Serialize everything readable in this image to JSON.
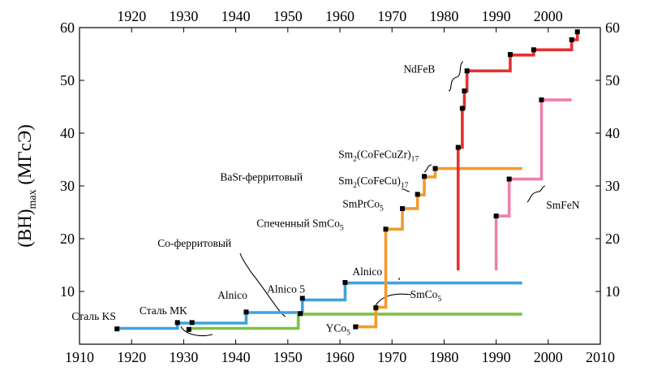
{
  "chart_data": {
    "type": "line",
    "xlim": [
      1910,
      2010
    ],
    "ylim": [
      0,
      60
    ],
    "x_ticks": [
      1910,
      1920,
      1930,
      1940,
      1950,
      1960,
      1970,
      1980,
      1990,
      2000,
      2010
    ],
    "x_ticks_top": [
      1920,
      1930,
      1940,
      1950,
      1960,
      1970,
      1980,
      1990,
      2000
    ],
    "y_ticks": [
      10,
      20,
      30,
      40,
      50,
      60
    ],
    "ylabel": {
      "main": "(BH)",
      "sub": "max",
      "unit": " (МГсЭ)"
    },
    "grid": false,
    "colors": {
      "blue": "#3fa2dc",
      "green": "#7dc242",
      "orange": "#f39a2b",
      "red": "#e4312f",
      "pink": "#ef7fad"
    },
    "series": [
      {
        "color": "blue",
        "steps": [
          [
            1917,
            3,
            1928.8
          ],
          [
            1928.8,
            4,
            1942
          ],
          [
            1942,
            6,
            1952.8
          ],
          [
            1952.8,
            8.4,
            1961
          ],
          [
            1961,
            11.6,
            1995
          ]
        ]
      },
      {
        "color": "green",
        "steps": [
          [
            1931,
            3,
            1952
          ],
          [
            1952,
            5.7,
            1995
          ]
        ]
      },
      {
        "color": "orange",
        "steps": [
          [
            1963,
            3.3,
            1966.9
          ],
          [
            1966.9,
            7,
            1968.8
          ],
          [
            1968.8,
            21.8,
            1972
          ],
          [
            1972,
            25.7,
            1974.9
          ],
          [
            1974.9,
            28.3,
            1976.2
          ],
          [
            1976.2,
            31.7,
            1978.3
          ],
          [
            1978.3,
            33.3,
            1995
          ]
        ]
      },
      {
        "color": "red",
        "steps": [
          [
            1982.7,
            14,
            1982.7
          ],
          [
            1982.7,
            37.3,
            1983.5
          ],
          [
            1983.5,
            44.7,
            1983.9
          ],
          [
            1983.9,
            48,
            1984.4
          ],
          [
            1984.4,
            51.8,
            1992.7
          ],
          [
            1992.7,
            54.8,
            1997.2
          ],
          [
            1997.2,
            55.8,
            2004.5
          ],
          [
            2004.5,
            57.7,
            2005.6
          ],
          [
            2005.6,
            59.2,
            2005.6
          ]
        ]
      },
      {
        "color": "pink",
        "steps": [
          [
            1990,
            14,
            1990
          ],
          [
            1990,
            24.3,
            1992.5
          ],
          [
            1992.5,
            31.3,
            1998.7
          ],
          [
            1998.7,
            46.3,
            2004.5
          ]
        ]
      }
    ],
    "points": [
      [
        1917.2,
        2.9
      ],
      [
        1928.8,
        4.1
      ],
      [
        1931.6,
        4.1
      ],
      [
        1931,
        2.8
      ],
      [
        1942,
        6.1
      ],
      [
        1952.4,
        5.8
      ],
      [
        1952.8,
        8.7
      ],
      [
        1961,
        11.7
      ],
      [
        1963,
        3.3
      ],
      [
        1966.9,
        6.9
      ],
      [
        1968.8,
        21.8
      ],
      [
        1972,
        25.7
      ],
      [
        1974.9,
        28.4
      ],
      [
        1976.2,
        31.8
      ],
      [
        1978.3,
        33.3
      ],
      [
        1982.7,
        37.3
      ],
      [
        1983.5,
        44.7
      ],
      [
        1983.9,
        48
      ],
      [
        1984.4,
        51.8
      ],
      [
        1992.7,
        54.9
      ],
      [
        1997.2,
        55.8
      ],
      [
        2004.5,
        57.7
      ],
      [
        2005.6,
        59.2
      ],
      [
        1990,
        24.3
      ],
      [
        1992.5,
        31.3
      ],
      [
        1998.7,
        46.3
      ]
    ],
    "labels": [
      {
        "text": "Сталь KS",
        "x": 1908.5,
        "y": 4.6
      },
      {
        "text": "Сталь MK",
        "x": 1921.5,
        "y": 5.7
      },
      {
        "text": "Alnico",
        "x": 1936.5,
        "y": 8.6
      },
      {
        "text": "Co-ферритовый",
        "x": 1925,
        "y": 18.5
      },
      {
        "text": "Alnico 5",
        "x": 1946,
        "y": 9.8
      },
      {
        "text": "BaSr-ферритовый",
        "x": 1937,
        "y": 31
      },
      {
        "text": "Alnico",
        "x": 1962.4,
        "y": 13.1
      },
      {
        "text": "SmCo",
        "sub": "5",
        "x": 1973.5,
        "y": 8.8
      },
      {
        "text": "YCo",
        "sub": "5",
        "x": 1957.3,
        "y": 2.4
      },
      {
        "text": "Спеченный SmCo",
        "sub": "5",
        "x": 1944,
        "y": 22.2
      },
      {
        "text": "SmPrCo",
        "sub": "5",
        "x": 1960.5,
        "y": 25.9
      },
      {
        "text": "Sm",
        "sub": "2",
        "text2": "(CoFeCu)",
        "sub2": "17",
        "x": 1959.7,
        "y": 30.3
      },
      {
        "text": "Sm",
        "sub": "2",
        "text2": "(CoFeCuZr)",
        "sub2": "17",
        "x": 1959.7,
        "y": 35.3
      },
      {
        "text": "NdFeB",
        "x": 1972.2,
        "y": 51.5
      },
      {
        "text": "SmFeN",
        "x": 1999.6,
        "y": 25.7
      }
    ]
  }
}
